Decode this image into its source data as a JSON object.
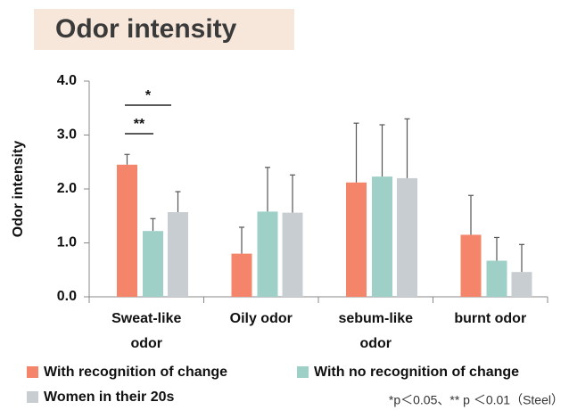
{
  "chart_data": {
    "type": "bar",
    "title": "Odor intensity",
    "ylabel": "Odor intensity",
    "categories": [
      "Sweat-like odor",
      "Oily odor",
      "sebum-like odor",
      "burnt odor"
    ],
    "series": [
      {
        "name": "With recognition of change",
        "color": "#f4846a",
        "values": [
          2.45,
          0.8,
          2.12,
          1.15
        ],
        "errors": [
          0.19,
          0.49,
          1.1,
          0.73
        ]
      },
      {
        "name": "With no recognition of change",
        "color": "#9fd0c7",
        "values": [
          1.22,
          1.58,
          2.23,
          0.67
        ],
        "errors": [
          0.23,
          0.82,
          0.96,
          0.43
        ]
      },
      {
        "name": "Women in their 20s",
        "color": "#c8cdd1",
        "values": [
          1.57,
          1.56,
          2.2,
          0.46
        ],
        "errors": [
          0.38,
          0.7,
          1.1,
          0.51
        ]
      }
    ],
    "ylim": [
      0,
      4
    ],
    "yticks": [
      {
        "value": 0,
        "label": "0.0"
      },
      {
        "value": 1,
        "label": "1.0"
      },
      {
        "value": 2,
        "label": "2.0"
      },
      {
        "value": 3,
        "label": "3.0"
      },
      {
        "value": 4,
        "label": "4.0"
      }
    ],
    "significance": [
      "*",
      "**"
    ],
    "note": "*p＜0.05、** p ＜0.01（Steel）"
  }
}
